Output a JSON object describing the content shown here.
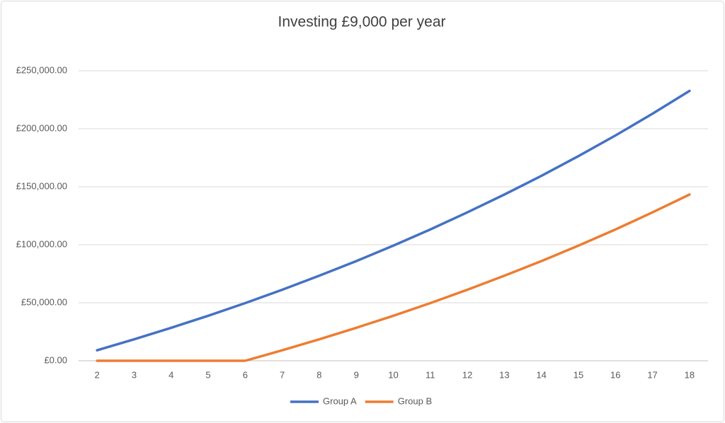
{
  "chart_data": {
    "type": "line",
    "title": "Investing £9,000 per year",
    "x": [
      2,
      3,
      4,
      5,
      6,
      7,
      8,
      9,
      10,
      11,
      12,
      13,
      14,
      15,
      16,
      17,
      18
    ],
    "xlim": [
      1.5,
      18.5
    ],
    "xticks": [
      2,
      3,
      4,
      5,
      6,
      7,
      8,
      9,
      10,
      11,
      12,
      13,
      14,
      15,
      16,
      17,
      18
    ],
    "ylim": [
      0,
      250000
    ],
    "yticks": [
      {
        "value": 0,
        "label": "£0.00"
      },
      {
        "value": 50000,
        "label": "£50,000.00"
      },
      {
        "value": 100000,
        "label": "£100,000.00"
      },
      {
        "value": 150000,
        "label": "£150,000.00"
      },
      {
        "value": 200000,
        "label": "£200,000.00"
      },
      {
        "value": 250000,
        "label": "£250,000.00"
      }
    ],
    "grid": true,
    "legend": "bottom",
    "series": [
      {
        "name": "Group A",
        "color": "#4472c4",
        "values": [
          9000,
          18500,
          28400,
          38800,
          49700,
          61200,
          73300,
          85900,
          99200,
          113200,
          127900,
          143300,
          159400,
          176400,
          194200,
          212900,
          232600
        ]
      },
      {
        "name": "Group B",
        "color": "#ed7d31",
        "values": [
          0,
          0,
          0,
          0,
          0,
          9000,
          18500,
          28400,
          38800,
          49700,
          61200,
          73300,
          85900,
          99200,
          113200,
          127900,
          143300
        ]
      }
    ]
  }
}
